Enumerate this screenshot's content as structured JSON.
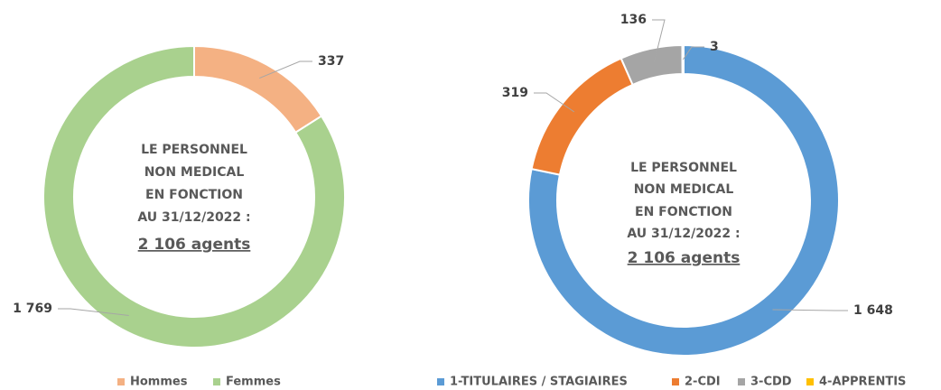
{
  "chart_data": [
    {
      "type": "pie",
      "donut": true,
      "center_lines": [
        "LE PERSONNEL",
        "NON MEDICAL",
        "EN FONCTION",
        "AU 31/12/2022 :"
      ],
      "center_total": "2 106 agents",
      "categories": [
        "Hommes",
        "Femmes"
      ],
      "values": [
        337,
        1769
      ],
      "value_labels": [
        "337",
        "1 769"
      ],
      "colors": [
        "#f4b183",
        "#a9d18e"
      ],
      "legend": "bottom"
    },
    {
      "type": "pie",
      "donut": true,
      "center_lines": [
        "LE PERSONNEL",
        "NON MEDICAL",
        "EN FONCTION",
        "AU 31/12/2022 :"
      ],
      "center_total": "2 106 agents",
      "categories": [
        "1-TITULAIRES / STAGIAIRES",
        "2-CDI",
        "3-CDD",
        "4-APPRENTIS"
      ],
      "values": [
        1648,
        319,
        136,
        3
      ],
      "value_labels": [
        "1 648",
        "319",
        "136",
        "3"
      ],
      "colors": [
        "#5b9bd5",
        "#ed7d31",
        "#a5a5a5",
        "#ffc000"
      ],
      "legend": "bottom"
    }
  ]
}
